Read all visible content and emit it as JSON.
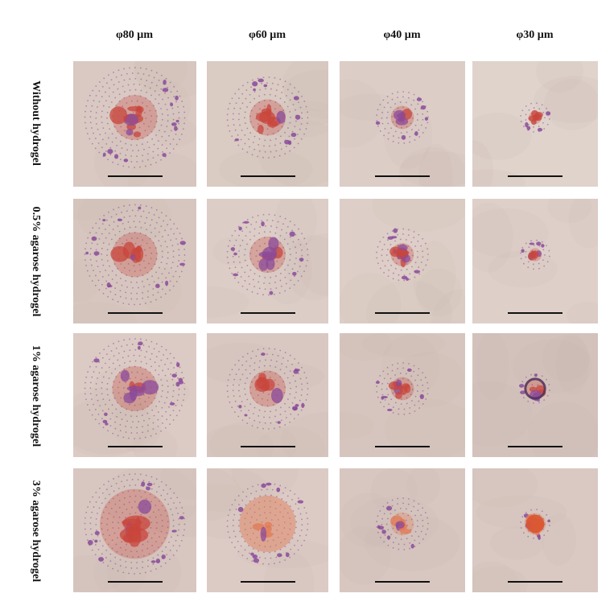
{
  "columns": [
    "φ80 µm",
    "φ60 µm",
    "φ40 µm",
    "φ30 µm"
  ],
  "rows": [
    "Without hydrogel",
    "0.5% agarose hydrogel",
    "1% agarose hydrogel",
    "3% agarose hydrogel"
  ],
  "panels": [
    [
      {
        "ring": "large",
        "stain": "sparse-red",
        "background": "#d9c9c2"
      },
      {
        "ring": "medium",
        "stain": "sparse-red",
        "background": "#dacbc3"
      },
      {
        "ring": "small",
        "stain": "sparse-red",
        "background": "#dccdc6"
      },
      {
        "ring": "tiny",
        "stain": "small-red",
        "background": "#e0d3cc"
      }
    ],
    [
      {
        "ring": "large",
        "stain": "red-center",
        "background": "#d7c6bf"
      },
      {
        "ring": "medium",
        "stain": "red-purple",
        "background": "#dccdc6"
      },
      {
        "ring": "small",
        "stain": "red-center",
        "background": "#ddcec7"
      },
      {
        "ring": "tiny",
        "stain": "purple-cluster",
        "background": "#ded0c9"
      }
    ],
    [
      {
        "ring": "large",
        "stain": "red-ring",
        "background": "#dccbc4"
      },
      {
        "ring": "medium",
        "stain": "red-purple",
        "background": "#d9c8c1"
      },
      {
        "ring": "small",
        "stain": "red-cluster",
        "background": "#d6c5be"
      },
      {
        "ring": "tiny",
        "stain": "dark-cluster",
        "background": "#d3c2bb"
      }
    ],
    [
      {
        "ring": "large",
        "stain": "red-dense",
        "background": "#d8c7c0"
      },
      {
        "ring": "medium",
        "stain": "orange-fill",
        "background": "#dccbc4"
      },
      {
        "ring": "small",
        "stain": "orange-cluster",
        "background": "#d8c7c0"
      },
      {
        "ring": "tiny",
        "stain": "orange-solid",
        "background": "#d9c9c2"
      }
    ]
  ],
  "colors": {
    "background": "#ffffff",
    "red_stain": "#c8463c",
    "orange_stain": "#e07a55",
    "purple_dot": "#8a4a9a",
    "scale_bar": "#111111"
  }
}
